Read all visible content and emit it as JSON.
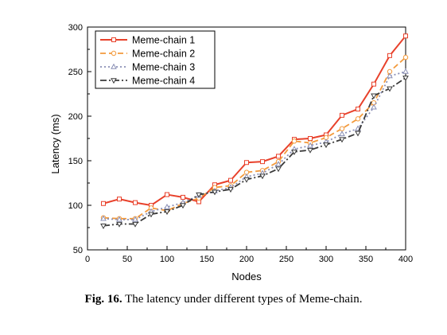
{
  "caption": {
    "label": "Fig. 16.",
    "text": "The latency under different types of Meme-chain."
  },
  "chart_data": {
    "type": "line",
    "xlabel": "Nodes",
    "ylabel": "Latency (ms)",
    "xlim": [
      0,
      400
    ],
    "ylim": [
      50,
      300
    ],
    "xticks": [
      0,
      50,
      100,
      150,
      200,
      250,
      300,
      350,
      400
    ],
    "yticks": [
      50,
      100,
      150,
      200,
      250,
      300
    ],
    "grid": false,
    "legend_position": "top-left",
    "x": [
      20,
      40,
      60,
      80,
      100,
      120,
      140,
      160,
      180,
      200,
      220,
      240,
      260,
      280,
      300,
      320,
      340,
      360,
      380,
      400
    ],
    "series": [
      {
        "name": "Meme-chain 1",
        "color": "#e8412b",
        "values": [
          102,
          107,
          103,
          100,
          112,
          109,
          104,
          123,
          128,
          148,
          149,
          155,
          174,
          175,
          179,
          201,
          208,
          236,
          268,
          290
        ]
      },
      {
        "name": "Meme-chain 2",
        "color": "#f39a3c",
        "values": [
          86,
          85,
          85,
          97,
          94,
          102,
          108,
          120,
          122,
          137,
          139,
          149,
          172,
          170,
          176,
          186,
          197,
          215,
          250,
          266
        ]
      },
      {
        "name": "Meme-chain 3",
        "color": "#8a8fb5",
        "values": [
          85,
          84,
          84,
          93,
          98,
          103,
          111,
          116,
          120,
          132,
          136,
          146,
          163,
          167,
          171,
          180,
          186,
          210,
          245,
          250
        ]
      },
      {
        "name": "Meme-chain 4",
        "color": "#3a3a3a",
        "values": [
          77,
          79,
          79,
          90,
          93,
          100,
          112,
          115,
          118,
          129,
          133,
          141,
          160,
          162,
          168,
          174,
          181,
          223,
          231,
          243
        ]
      }
    ]
  }
}
